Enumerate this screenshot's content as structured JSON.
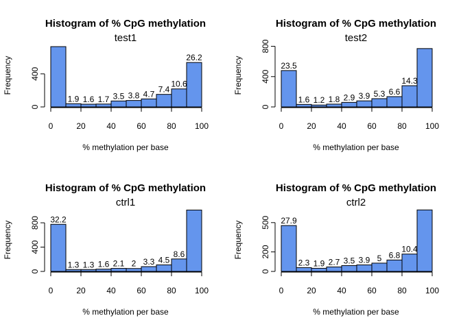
{
  "colors": {
    "bar_fill": "#6495ED",
    "bar_stroke": "#000000",
    "background": "#ffffff"
  },
  "chart_data": [
    {
      "type": "bar",
      "title": "Histogram of % CpG methylation",
      "subtitle": "test1",
      "xlabel": "% methylation per base",
      "ylabel": "Frequency",
      "bins": [
        [
          0,
          10
        ],
        [
          10,
          20
        ],
        [
          20,
          30
        ],
        [
          30,
          40
        ],
        [
          40,
          50
        ],
        [
          50,
          60
        ],
        [
          60,
          70
        ],
        [
          70,
          80
        ],
        [
          80,
          90
        ],
        [
          90,
          100
        ]
      ],
      "values": [
        730,
        39,
        33,
        35,
        72,
        78,
        97,
        152,
        218,
        538
      ],
      "bar_labels": [
        "",
        "1.9",
        "1.6",
        "1.7",
        "3.5",
        "3.8",
        "4.7",
        "7.4",
        "10.6",
        "26.2"
      ],
      "xticks": [
        "0",
        "20",
        "40",
        "60",
        "80",
        "100"
      ],
      "yticks": [
        0,
        400
      ],
      "ylim": [
        0,
        780
      ],
      "grid": false
    },
    {
      "type": "bar",
      "title": "Histogram of % CpG methylation",
      "subtitle": "test2",
      "xlabel": "% methylation per base",
      "ylabel": "Frequency",
      "bins": [
        [
          0,
          10
        ],
        [
          10,
          20
        ],
        [
          20,
          30
        ],
        [
          30,
          40
        ],
        [
          40,
          50
        ],
        [
          50,
          60
        ],
        [
          60,
          70
        ],
        [
          70,
          80
        ],
        [
          80,
          90
        ],
        [
          90,
          100
        ]
      ],
      "values": [
        480,
        33,
        25,
        37,
        60,
        80,
        109,
        136,
        280,
        770
      ],
      "bar_labels": [
        "23.5",
        "1.6",
        "1.2",
        "1.8",
        "2.9",
        "3.9",
        "5.3",
        "6.6",
        "14.3",
        ""
      ],
      "xticks": [
        "0",
        "20",
        "40",
        "60",
        "80",
        "100"
      ],
      "yticks": [
        0,
        400,
        800
      ],
      "ylim": [
        0,
        850
      ],
      "grid": false
    },
    {
      "type": "bar",
      "title": "Histogram of % CpG methylation",
      "subtitle": "ctrl1",
      "xlabel": "% methylation per base",
      "ylabel": "Frequency",
      "bins": [
        [
          0,
          10
        ],
        [
          10,
          20
        ],
        [
          20,
          30
        ],
        [
          30,
          40
        ],
        [
          40,
          50
        ],
        [
          50,
          60
        ],
        [
          60,
          70
        ],
        [
          70,
          80
        ],
        [
          80,
          90
        ],
        [
          90,
          100
        ]
      ],
      "values": [
        775,
        31,
        31,
        38,
        50,
        48,
        79,
        108,
        205,
        1010
      ],
      "bar_labels": [
        "32.2",
        "1.3",
        "1.3",
        "1.6",
        "2.1",
        "2",
        "3.3",
        "4.5",
        "8.6",
        ""
      ],
      "xticks": [
        "0",
        "20",
        "40",
        "60",
        "80",
        "100"
      ],
      "yticks": [
        0,
        400,
        800
      ],
      "ylim": [
        0,
        1060
      ],
      "grid": false
    },
    {
      "type": "bar",
      "title": "Histogram of % CpG methylation",
      "subtitle": "ctrl2",
      "xlabel": "% methylation per base",
      "ylabel": "Frequency",
      "bins": [
        [
          0,
          10
        ],
        [
          10,
          20
        ],
        [
          20,
          30
        ],
        [
          30,
          40
        ],
        [
          40,
          50
        ],
        [
          50,
          60
        ],
        [
          60,
          70
        ],
        [
          70,
          80
        ],
        [
          80,
          90
        ],
        [
          90,
          100
        ]
      ],
      "values": [
        470,
        39,
        32,
        46,
        60,
        67,
        85,
        117,
        178,
        630
      ],
      "bar_labels": [
        "27.9",
        "2.3",
        "1.9",
        "2.7",
        "3.5",
        "3.9",
        "5",
        "6.8",
        "10.4",
        ""
      ],
      "xticks": [
        "0",
        "20",
        "40",
        "60",
        "80",
        "100"
      ],
      "yticks": [
        0,
        200,
        500
      ],
      "ylim": [
        0,
        660
      ],
      "grid": false
    }
  ]
}
